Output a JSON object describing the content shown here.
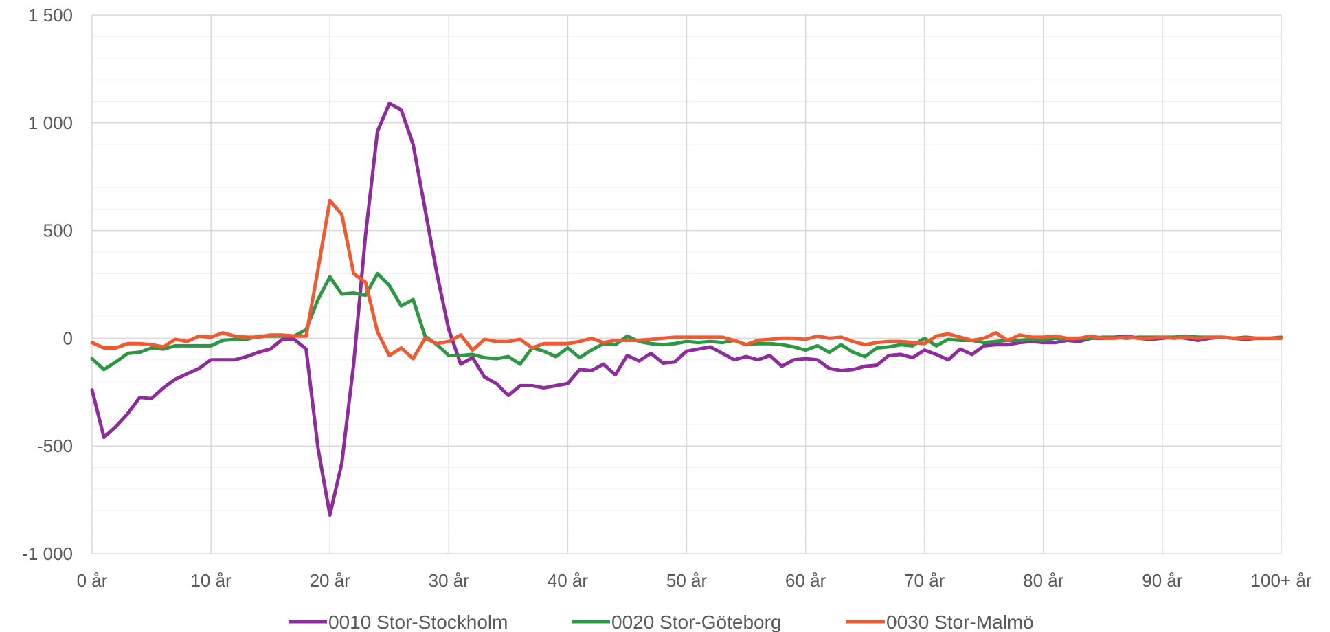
{
  "chart_data": {
    "type": "line",
    "title": "",
    "xlabel": "",
    "ylabel": "",
    "ylim": [
      -1000,
      1500
    ],
    "y_ticks": [
      1500,
      1000,
      500,
      0,
      -500,
      -1000
    ],
    "y_tick_labels": [
      "1 500",
      "1 000",
      "500",
      "0",
      "-500",
      "-1 000"
    ],
    "x_range": [
      0,
      100
    ],
    "x_ticks": [
      0,
      10,
      20,
      30,
      40,
      50,
      60,
      70,
      80,
      90,
      100
    ],
    "x_tick_labels": [
      "0 år",
      "10 år",
      "20 år",
      "30 år",
      "40 år",
      "50 år",
      "60 år",
      "70 år",
      "80 år",
      "90 år",
      "100+ år"
    ],
    "grid": true,
    "legend_position": "bottom",
    "series": [
      {
        "name": "0010 Stor-Stockholm",
        "color": "#8E2C9E",
        "values": [
          -240,
          -460,
          -410,
          -350,
          -275,
          -280,
          -230,
          -190,
          -165,
          -140,
          -100,
          -100,
          -100,
          -85,
          -65,
          -50,
          -5,
          -5,
          -50,
          -510,
          -820,
          -580,
          -120,
          480,
          960,
          1090,
          1060,
          900,
          600,
          300,
          40,
          -120,
          -90,
          -180,
          -210,
          -265,
          -220,
          -220,
          -230,
          -220,
          -210,
          -145,
          -150,
          -120,
          -170,
          -80,
          -105,
          -70,
          -115,
          -110,
          -60,
          -50,
          -40,
          -70,
          -100,
          -85,
          -100,
          -80,
          -130,
          -100,
          -95,
          -100,
          -140,
          -150,
          -145,
          -130,
          -125,
          -80,
          -75,
          -90,
          -55,
          -75,
          -100,
          -50,
          -75,
          -35,
          -30,
          -30,
          -20,
          -15,
          -20,
          -20,
          -10,
          -15,
          0,
          0,
          5,
          10,
          0,
          -5,
          0,
          5,
          0,
          -10,
          0,
          5,
          0,
          -5,
          0,
          0,
          0
        ]
      },
      {
        "name": "0020 Stor-Göteborg",
        "color": "#2E9744",
        "values": [
          -95,
          -145,
          -110,
          -70,
          -65,
          -45,
          -50,
          -35,
          -35,
          -35,
          -35,
          -10,
          -5,
          -5,
          10,
          10,
          10,
          10,
          40,
          180,
          285,
          205,
          210,
          200,
          300,
          245,
          150,
          180,
          10,
          -30,
          -80,
          -80,
          -75,
          -90,
          -95,
          -85,
          -120,
          -45,
          -60,
          -85,
          -45,
          -90,
          -55,
          -25,
          -30,
          10,
          -15,
          -25,
          -30,
          -25,
          -15,
          -20,
          -15,
          -20,
          -10,
          -30,
          -25,
          -25,
          -30,
          -40,
          -55,
          -35,
          -65,
          -30,
          -65,
          -85,
          -45,
          -40,
          -30,
          -35,
          0,
          -35,
          -5,
          -10,
          -10,
          -20,
          -15,
          -10,
          -10,
          -5,
          -10,
          0,
          -5,
          0,
          0,
          5,
          5,
          0,
          5,
          5,
          5,
          5,
          10,
          5,
          5,
          5,
          0,
          5,
          0,
          0,
          5
        ]
      },
      {
        "name": "0030 Stor-Malmö",
        "color": "#F05A32",
        "values": [
          -20,
          -45,
          -45,
          -25,
          -25,
          -30,
          -40,
          -5,
          -15,
          10,
          5,
          25,
          10,
          5,
          5,
          15,
          15,
          10,
          10,
          320,
          640,
          575,
          300,
          260,
          30,
          -80,
          -45,
          -95,
          0,
          -25,
          -15,
          15,
          -55,
          -5,
          -15,
          -15,
          -5,
          -45,
          -25,
          -25,
          -25,
          -15,
          0,
          -20,
          -10,
          -10,
          -10,
          -5,
          0,
          5,
          5,
          5,
          5,
          5,
          -10,
          -30,
          -10,
          -5,
          0,
          0,
          -5,
          10,
          0,
          5,
          -15,
          -30,
          -20,
          -15,
          -15,
          -20,
          -25,
          10,
          20,
          5,
          -10,
          0,
          25,
          -10,
          15,
          5,
          5,
          10,
          0,
          0,
          10,
          0,
          0,
          5,
          0,
          0,
          5,
          0,
          5,
          0,
          5,
          5,
          0,
          0,
          0,
          0,
          0
        ]
      }
    ]
  }
}
